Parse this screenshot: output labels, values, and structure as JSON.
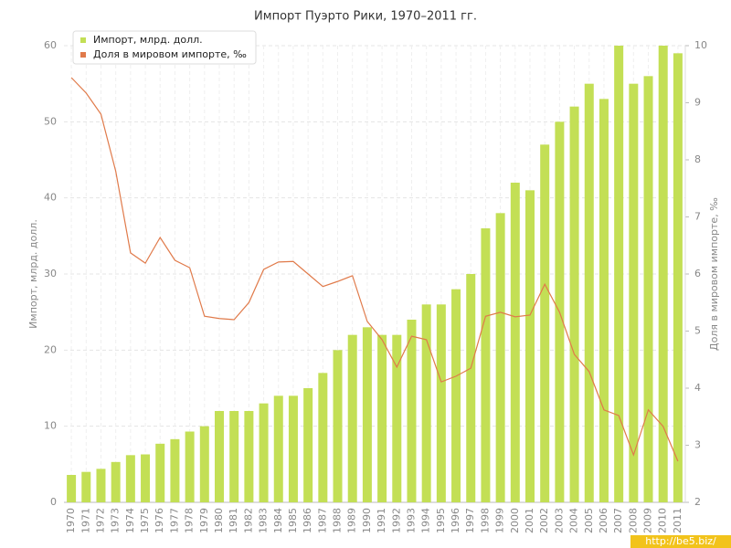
{
  "chart_data": {
    "type": "bar_line",
    "title": "Импорт Пуэрто Рики, 1970–2011 гг.",
    "y_label": "Импорт, млрд. долл.",
    "y2_label": "Доля в мировом импорте, ‰",
    "watermark": "http://be5.biz/",
    "categories": [
      "1970",
      "1971",
      "1972",
      "1973",
      "1974",
      "1975",
      "1976",
      "1977",
      "1978",
      "1979",
      "1980",
      "1981",
      "1982",
      "1983",
      "1984",
      "1985",
      "1986",
      "1987",
      "1988",
      "1989",
      "1990",
      "1991",
      "1992",
      "1993",
      "1994",
      "1995",
      "1996",
      "1997",
      "1998",
      "1999",
      "2000",
      "2001",
      "2002",
      "2003",
      "2004",
      "2005",
      "2006",
      "2007",
      "2008",
      "2009",
      "2010",
      "2011"
    ],
    "series": [
      {
        "name": "Импорт, млрд. долл.",
        "color": "#c3df55",
        "axis": "y",
        "values": [
          3.6,
          4.0,
          4.4,
          5.3,
          6.2,
          6.3,
          7.7,
          8.3,
          9.3,
          10,
          12,
          12,
          12,
          13,
          14,
          14,
          15,
          17,
          20,
          22,
          23,
          22,
          22,
          24,
          26,
          26,
          28,
          30,
          36,
          38,
          42,
          41,
          47,
          50,
          52,
          55,
          53,
          60,
          55,
          56,
          60,
          59
        ]
      },
      {
        "name": "Доля в мировом импорте, ‰",
        "color": "#e07a4a",
        "axis": "y2",
        "values": [
          9.44,
          9.17,
          8.8,
          7.8,
          6.37,
          6.19,
          6.64,
          6.24,
          6.11,
          5.26,
          5.22,
          5.2,
          5.5,
          6.08,
          6.21,
          6.22,
          6.0,
          5.78,
          5.87,
          5.97,
          5.17,
          4.85,
          4.37,
          4.91,
          4.85,
          4.11,
          4.21,
          4.35,
          5.26,
          5.33,
          5.25,
          5.28,
          5.82,
          5.33,
          4.59,
          4.29,
          3.62,
          3.52,
          2.83,
          3.62,
          3.33,
          2.72
        ]
      }
    ],
    "ylim": [
      0,
      60
    ],
    "yticks": [
      0,
      10,
      20,
      30,
      40,
      50,
      60
    ],
    "y2lim": [
      2,
      10
    ],
    "y2ticks": [
      2,
      3,
      4,
      5,
      6,
      7,
      8,
      9,
      10
    ],
    "grid": true,
    "legend": "top-left"
  }
}
